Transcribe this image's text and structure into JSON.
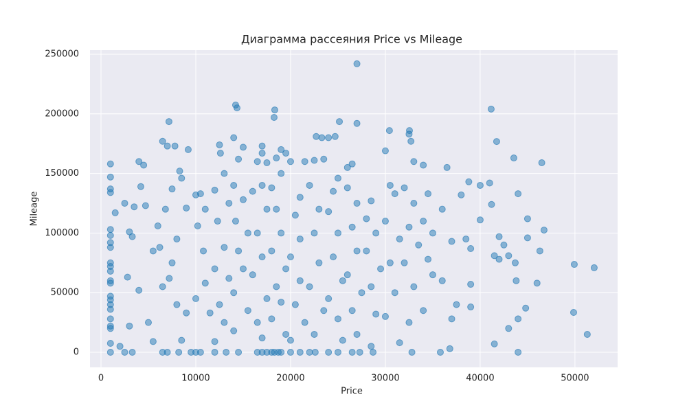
{
  "chart_data": {
    "type": "scatter",
    "title": "Диаграмма рассеяния Price vs Mileage",
    "x_label": "Price",
    "y_label": "Mileage",
    "color": "#1f77b4",
    "grid": true,
    "xlim": [
      -1160,
      54500
    ],
    "ylim": [
      -12670,
      253460
    ],
    "xticks": [
      0,
      10000,
      20000,
      30000,
      40000,
      50000
    ],
    "yticks": [
      0,
      50000,
      100000,
      150000,
      200000,
      250000
    ],
    "x": [
      1000,
      1000,
      1000,
      1000,
      1000,
      1000,
      1000,
      1000,
      1000,
      1000,
      1000,
      1000,
      1000,
      1000,
      1000,
      1000,
      1000,
      1000,
      1000,
      1000,
      1000,
      1000,
      2500,
      3300,
      6500,
      7000,
      8200,
      9500,
      10000,
      10500,
      12000,
      13200,
      14500,
      16500,
      17000,
      17500,
      18000,
      18300,
      18700,
      19000,
      20000,
      21000,
      22000,
      22600,
      24000,
      25000,
      26500,
      27300,
      28700,
      32800,
      35800,
      44000,
      27000,
      14200,
      14350,
      18330,
      18260,
      7170,
      27000,
      25150,
      41160,
      49930,
      52030,
      49860,
      51300,
      46740,
      46500,
      43550,
      41740,
      30430,
      32540,
      1500,
      2500,
      3000,
      3300,
      4000,
      4500,
      4200,
      3500,
      4700,
      5500,
      4000,
      2800,
      3000,
      2000,
      6000,
      6200,
      6500,
      7000,
      7800,
      7500,
      6800,
      8300,
      8500,
      9200,
      9000,
      8000,
      7500,
      7200,
      6500,
      8000,
      9000,
      8500,
      5000,
      5500,
      10000,
      10500,
      10200,
      11000,
      10800,
      11000,
      10000,
      11500,
      12000,
      12500,
      12600,
      13000,
      13500,
      12300,
      13000,
      12000,
      13500,
      12500,
      13000,
      12000,
      14000,
      14500,
      15000,
      14000,
      15000,
      14200,
      15500,
      14500,
      15000,
      14000,
      15500,
      14000,
      16500,
      17000,
      17000,
      17500,
      16000,
      17000,
      17500,
      16500,
      17000,
      16000,
      17500,
      16500,
      17000,
      18000,
      18500,
      19000,
      19500,
      19000,
      18500,
      19000,
      18000,
      19500,
      18500,
      19000,
      18000,
      19500,
      20000,
      21000,
      20500,
      21000,
      20000,
      21000,
      20500,
      21500,
      20000,
      21500,
      22500,
      22700,
      23300,
      24000,
      24700,
      23500,
      22000,
      23000,
      22500,
      23000,
      22000,
      23500,
      22500,
      24500,
      25000,
      24000,
      25000,
      24500,
      25500,
      24000,
      25000,
      25500,
      26000,
      26500,
      26000,
      27000,
      26500,
      27000,
      26000,
      27500,
      26500,
      27000,
      28000,
      28500,
      29000,
      28000,
      29500,
      28500,
      29000,
      28500,
      30000,
      30500,
      31000,
      30000,
      31500,
      30500,
      31000,
      30000,
      31500,
      32500,
      32700,
      33000,
      32000,
      33000,
      32500,
      33500,
      32000,
      33000,
      32500,
      34000,
      34500,
      34000,
      35000,
      34500,
      35000,
      34000,
      36500,
      36000,
      37000,
      36000,
      37500,
      37000,
      36800,
      38000,
      38800,
      39000,
      38500,
      39000,
      39000,
      40000,
      40000,
      41000,
      41200,
      42000,
      41500,
      42500,
      43000,
      43700,
      42000,
      43800,
      44000,
      41500,
      43000,
      44000,
      45000,
      45000,
      44800,
      46000,
      46300
    ],
    "values": [
      158000,
      147000,
      137000,
      134000,
      103000,
      98000,
      92000,
      88000,
      75000,
      72000,
      68000,
      60000,
      58000,
      47000,
      44000,
      40000,
      36000,
      28000,
      22000,
      20000,
      7500,
      0,
      0,
      0,
      0,
      0,
      0,
      0,
      0,
      0,
      0,
      0,
      0,
      0,
      0,
      0,
      0,
      0,
      0,
      0,
      0,
      0,
      0,
      0,
      0,
      0,
      0,
      0,
      0,
      0,
      0,
      0,
      242000,
      207400,
      205000,
      203300,
      197000,
      193500,
      192000,
      193500,
      204000,
      73700,
      70900,
      33400,
      15000,
      102500,
      159000,
      163000,
      176800,
      186000,
      186000,
      117000,
      125000,
      101000,
      97000,
      160000,
      157000,
      139000,
      122000,
      123000,
      85000,
      52000,
      63000,
      22000,
      5000,
      106000,
      88000,
      177000,
      173000,
      173000,
      137000,
      120000,
      152000,
      146000,
      170000,
      121000,
      95000,
      75000,
      62000,
      55000,
      40000,
      33000,
      10000,
      25000,
      9000,
      132000,
      133000,
      106000,
      120000,
      85000,
      58000,
      45000,
      33000,
      136000,
      174000,
      167000,
      150000,
      125000,
      110000,
      88000,
      70000,
      62000,
      40000,
      25000,
      9000,
      180000,
      162000,
      172000,
      140000,
      128000,
      110000,
      100000,
      85000,
      70000,
      50000,
      35000,
      18000,
      160000,
      173000,
      167000,
      159000,
      135000,
      140000,
      120000,
      100000,
      80000,
      65000,
      45000,
      25000,
      12000,
      138000,
      163000,
      170000,
      167000,
      150000,
      120000,
      100000,
      85000,
      70000,
      55000,
      42000,
      28000,
      15000,
      160000,
      130000,
      115000,
      95000,
      80000,
      60000,
      40000,
      25000,
      10000,
      160000,
      161000,
      181000,
      180000,
      180000,
      181000,
      162000,
      140000,
      120000,
      100000,
      75000,
      55000,
      35000,
      15000,
      135000,
      146000,
      118000,
      100000,
      80000,
      60000,
      45000,
      28000,
      10000,
      155000,
      158000,
      138000,
      125000,
      105000,
      85000,
      65000,
      50000,
      35000,
      15000,
      112000,
      127000,
      100000,
      85000,
      70000,
      55000,
      32000,
      5000,
      169000,
      140000,
      133000,
      110000,
      95000,
      75000,
      50000,
      30000,
      8000,
      183000,
      177000,
      160000,
      138000,
      125000,
      105000,
      90000,
      75000,
      55000,
      25000,
      157000,
      133000,
      110000,
      100000,
      78000,
      65000,
      35000,
      155000,
      120000,
      93000,
      60000,
      40000,
      28000,
      3000,
      132000,
      143000,
      87000,
      95000,
      57000,
      38000,
      140000,
      111000,
      142000,
      124000,
      97000,
      81000,
      90000,
      81000,
      75000,
      78000,
      60000,
      28000,
      7000,
      20000,
      133000,
      112000,
      96000,
      37000,
      58000,
      85000
    ]
  }
}
